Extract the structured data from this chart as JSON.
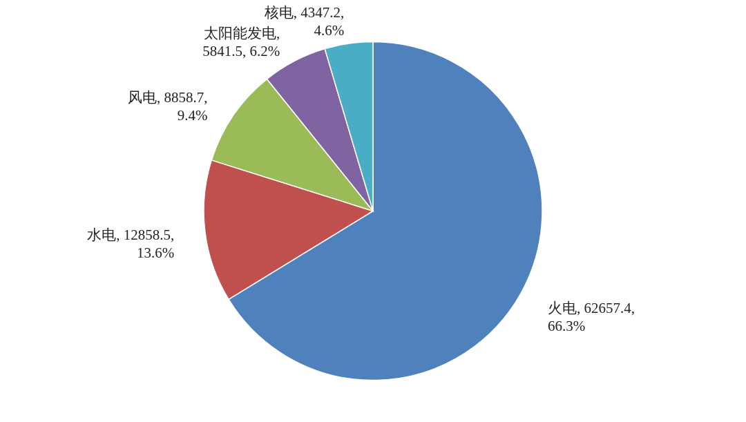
{
  "chart_data": {
    "type": "pie",
    "categories": [
      "火电",
      "水电",
      "风电",
      "太阳能发电",
      "核电"
    ],
    "values": [
      62657.4,
      12858.5,
      8858.7,
      5841.5,
      4347.2
    ],
    "colors": [
      "#4f81bd",
      "#c0504d",
      "#9bbb59",
      "#8064a2",
      "#4bacc6"
    ],
    "value_labels": [
      ", 62657.4,\n66.3%",
      ", 12858.5,\n13.6%",
      ", 8858.7,\n9.4%",
      ",\n5841.5, 6.2%",
      ", 4347.2,\n4.6%"
    ],
    "legend": false
  }
}
